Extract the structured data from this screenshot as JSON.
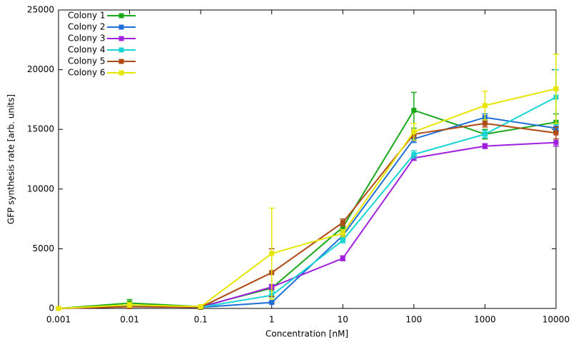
{
  "chart_data": {
    "type": "line",
    "xscale": "log",
    "xlabel": "Concentration [nM]",
    "ylabel": "GFP synthesis rate [arb. units]",
    "x": [
      0.001,
      0.01,
      0.1,
      1,
      10,
      100,
      1000,
      10000
    ],
    "xlim": [
      0.001,
      10000
    ],
    "xticks": [
      0.001,
      0.01,
      0.1,
      1,
      10,
      100,
      1000,
      10000
    ],
    "ylim": [
      0,
      25000
    ],
    "yticks": [
      0,
      5000,
      10000,
      15000,
      20000,
      25000
    ],
    "legend": "upper left",
    "series": [
      {
        "name": "Colony 1",
        "color": "#1aa81a",
        "values": [
          0,
          450,
          150,
          1700,
          6800,
          16600,
          14600,
          15600
        ],
        "errors": [
          0,
          300,
          50,
          300,
          300,
          1500,
          400,
          700
        ]
      },
      {
        "name": "Colony 2",
        "color": "#1f6fd6",
        "values": [
          0,
          200,
          100,
          500,
          6100,
          14200,
          16000,
          15100
        ],
        "errors": [
          0,
          100,
          50,
          100,
          300,
          300,
          300,
          300
        ]
      },
      {
        "name": "Colony 3",
        "color": "#a020e0",
        "values": [
          0,
          150,
          100,
          1800,
          4200,
          12600,
          13600,
          13900
        ],
        "errors": [
          0,
          100,
          50,
          200,
          200,
          200,
          200,
          300
        ]
      },
      {
        "name": "Colony 4",
        "color": "#18d4d4",
        "values": [
          0,
          250,
          100,
          1100,
          5700,
          12900,
          14600,
          17700
        ],
        "errors": [
          0,
          100,
          50,
          300,
          200,
          300,
          300,
          2300
        ]
      },
      {
        "name": "Colony 5",
        "color": "#b04a16",
        "values": [
          0,
          150,
          100,
          3000,
          7200,
          14600,
          15500,
          14700
        ],
        "errors": [
          0,
          100,
          50,
          2000,
          300,
          300,
          300,
          500
        ]
      },
      {
        "name": "Colony 6",
        "color": "#e6e600",
        "values": [
          0,
          300,
          150,
          4600,
          6300,
          14800,
          17000,
          18400
        ],
        "errors": [
          0,
          200,
          50,
          3800,
          300,
          700,
          1200,
          2900
        ]
      }
    ]
  }
}
